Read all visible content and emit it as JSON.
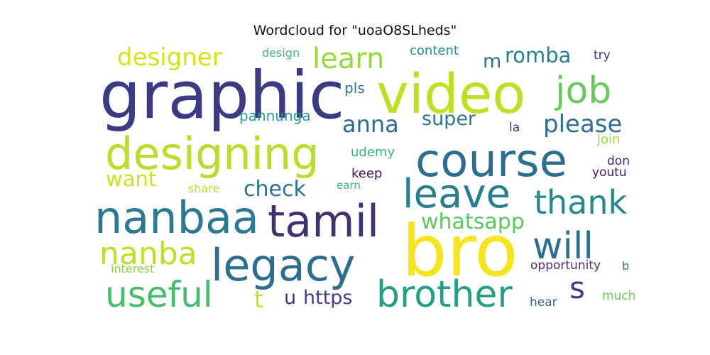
{
  "chart_data": {
    "type": "wordcloud",
    "title": "Wordcloud for \"uoaO8SLheds\"",
    "words": [
      {
        "text": "bro",
        "color": "#f5e51c"
      },
      {
        "text": "graphic",
        "color": "#3d3a84"
      },
      {
        "text": "video",
        "color": "#c1df22"
      },
      {
        "text": "course",
        "color": "#2b6f8e"
      },
      {
        "text": "designing",
        "color": "#b8dd2a"
      },
      {
        "text": "nanbaa",
        "color": "#2c7a8d"
      },
      {
        "text": "tamil",
        "color": "#42316f"
      },
      {
        "text": "legacy",
        "color": "#2c6e8e"
      },
      {
        "text": "leave",
        "color": "#277f8e"
      },
      {
        "text": "brother",
        "color": "#22a087"
      },
      {
        "text": "useful",
        "color": "#45bc6e"
      },
      {
        "text": "job",
        "color": "#67cb5c"
      },
      {
        "text": "will",
        "color": "#2d6f8e"
      },
      {
        "text": "thank",
        "color": "#25888d"
      },
      {
        "text": "nanba",
        "color": "#bfdf25"
      },
      {
        "text": "learn",
        "color": "#9ad93c"
      },
      {
        "text": "designer",
        "color": "#d8e21a"
      },
      {
        "text": "s",
        "color": "#403887"
      },
      {
        "text": "please",
        "color": "#2f6d8e"
      },
      {
        "text": "romba",
        "color": "#27808e"
      },
      {
        "text": "anna",
        "color": "#2f6b8e"
      },
      {
        "text": "whatsapp",
        "color": "#5cc863"
      },
      {
        "text": "check",
        "color": "#2b748e"
      },
      {
        "text": "want",
        "color": "#cde11d"
      },
      {
        "text": "super",
        "color": "#2a788e"
      },
      {
        "text": "https",
        "color": "#433e85"
      },
      {
        "text": "t",
        "color": "#c9e020"
      },
      {
        "text": "u",
        "color": "#40347f"
      },
      {
        "text": "m",
        "color": "#2d718e"
      },
      {
        "text": "pannunga",
        "color": "#2b9a8b"
      },
      {
        "text": "udemy",
        "color": "#35b779"
      },
      {
        "text": "pls",
        "color": "#2c738e"
      },
      {
        "text": "content",
        "color": "#21918c"
      },
      {
        "text": "design",
        "color": "#3fbc73"
      },
      {
        "text": "keep",
        "color": "#471063"
      },
      {
        "text": "join",
        "color": "#9dd93b"
      },
      {
        "text": "youtu",
        "color": "#481668"
      },
      {
        "text": "opportunity",
        "color": "#472f7d"
      },
      {
        "text": "try",
        "color": "#46307e"
      },
      {
        "text": "la",
        "color": "#472d7b"
      },
      {
        "text": "don",
        "color": "#482475"
      },
      {
        "text": "share",
        "color": "#b5de2b"
      },
      {
        "text": "earn",
        "color": "#3bbb75"
      },
      {
        "text": "interest",
        "color": "#86d549"
      },
      {
        "text": "hear",
        "color": "#33638d"
      },
      {
        "text": "much",
        "color": "#6ccd5a"
      },
      {
        "text": "b",
        "color": "#2b758e"
      }
    ]
  }
}
